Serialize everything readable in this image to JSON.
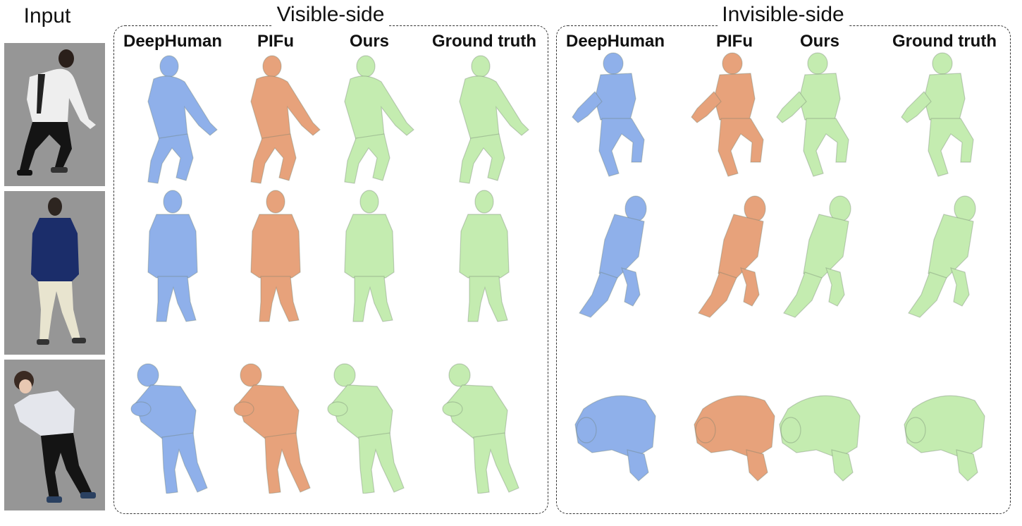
{
  "input_title": "Input",
  "sections": {
    "visible": {
      "title": "Visible-side"
    },
    "invisible": {
      "title": "Invisible-side"
    }
  },
  "methods": [
    "DeepHuman",
    "PIFu",
    "Ours",
    "Ground truth"
  ],
  "colors": {
    "deephuman": "#8fb0ea",
    "pifu": "#e7a27b",
    "ours": "#c4ecb0",
    "ground_truth": "#c4ecb0",
    "input_background": "#969696"
  },
  "rows": [
    {
      "visible_pose": "crouched reaching forward",
      "invisible_pose": "back crouched"
    },
    {
      "visible_pose": "standing back view",
      "invisible_pose": "top-down striding"
    },
    {
      "visible_pose": "hunched leaning",
      "invisible_pose": "top-down bent"
    }
  ]
}
